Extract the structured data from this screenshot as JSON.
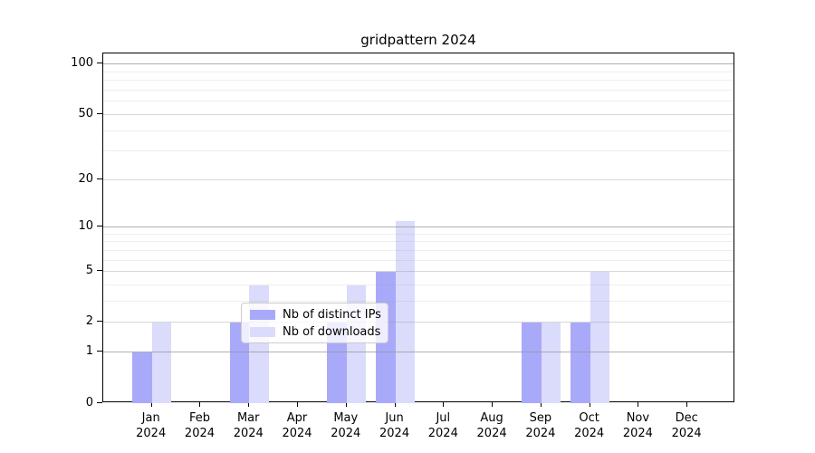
{
  "title": "gridpattern 2024",
  "chart_data": {
    "type": "bar",
    "title": "gridpattern 2024",
    "categories": [
      "Jan",
      "Feb",
      "Mar",
      "Apr",
      "May",
      "Jun",
      "Jul",
      "Aug",
      "Sep",
      "Oct",
      "Nov",
      "Dec"
    ],
    "year": "2024",
    "series": [
      {
        "name": "Nb of distinct IPs",
        "color": "#a9a9fa",
        "values": [
          1,
          0,
          2,
          0,
          2,
          5,
          0,
          0,
          2,
          2,
          0,
          0
        ]
      },
      {
        "name": "Nb of downloads",
        "color": "#dbdbfb",
        "values": [
          2,
          0,
          4,
          0,
          4,
          11,
          0,
          0,
          2,
          5,
          0,
          0
        ]
      }
    ],
    "yscale": "log1p",
    "ylim": [
      0,
      117
    ],
    "yticks": [
      0,
      1,
      2,
      5,
      10,
      20,
      50,
      100
    ],
    "major_gridlines": [
      1,
      10,
      100
    ],
    "mid_gridlines": [
      2,
      5,
      20,
      50
    ],
    "minor_gridlines": [
      3,
      4,
      6,
      7,
      8,
      9,
      30,
      40,
      60,
      70,
      80,
      90
    ],
    "grid": true,
    "grid_above_bars": true,
    "legend_position": "lower center",
    "axis_color": "#000000",
    "grid_color": "#9a9a9a"
  }
}
